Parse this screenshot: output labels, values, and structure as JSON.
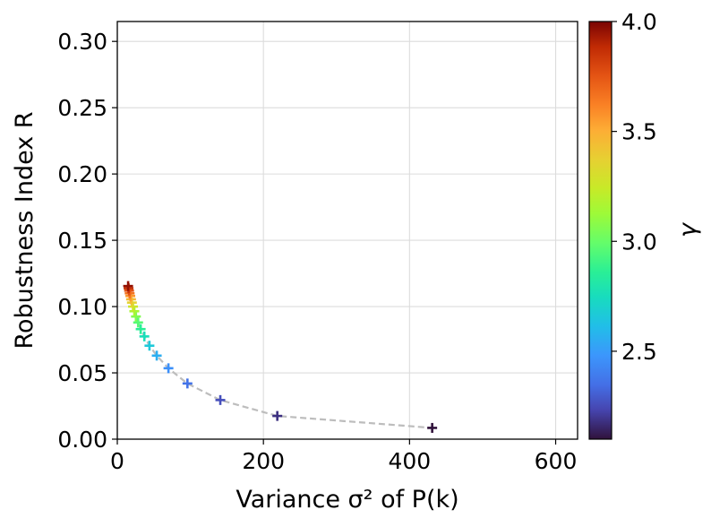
{
  "chart_data": {
    "type": "scatter",
    "title": "",
    "xlabel": "Variance σ² of P(k)",
    "ylabel": "Robustness Index R",
    "xlim": [
      0,
      630
    ],
    "ylim": [
      0,
      0.315
    ],
    "xticks": [
      0,
      200,
      400,
      600
    ],
    "xtick_labels": [
      "0",
      "200",
      "400",
      "600"
    ],
    "yticks": [
      0.0,
      0.05,
      0.1,
      0.15,
      0.2,
      0.25,
      0.3
    ],
    "ytick_labels": [
      "0.00",
      "0.05",
      "0.10",
      "0.15",
      "0.20",
      "0.25",
      "0.30"
    ],
    "grid": true,
    "marker": "+",
    "trend_line": {
      "style": "dashed",
      "color": "#bdbdbd"
    },
    "colorbar": {
      "label": "γ",
      "colormap": "turbo",
      "range": [
        2.1,
        4.0
      ],
      "ticks": [
        2.5,
        3.0,
        3.5,
        4.0
      ],
      "tick_labels": [
        "2.5",
        "3.0",
        "3.5",
        "4.0"
      ]
    },
    "points": [
      {
        "x": 431,
        "y": 0.0085,
        "gamma": 2.1
      },
      {
        "x": 219,
        "y": 0.0175,
        "gamma": 2.18
      },
      {
        "x": 141,
        "y": 0.0295,
        "gamma": 2.26
      },
      {
        "x": 96,
        "y": 0.042,
        "gamma": 2.36
      },
      {
        "x": 70,
        "y": 0.0535,
        "gamma": 2.46
      },
      {
        "x": 54,
        "y": 0.063,
        "gamma": 2.56
      },
      {
        "x": 44,
        "y": 0.0705,
        "gamma": 2.66
      },
      {
        "x": 37,
        "y": 0.0775,
        "gamma": 2.76
      },
      {
        "x": 32,
        "y": 0.083,
        "gamma": 2.86
      },
      {
        "x": 28.5,
        "y": 0.088,
        "gamma": 2.96
      },
      {
        "x": 25.5,
        "y": 0.0925,
        "gamma": 3.06
      },
      {
        "x": 23.3,
        "y": 0.0965,
        "gamma": 3.16
      },
      {
        "x": 21.5,
        "y": 0.1,
        "gamma": 3.26
      },
      {
        "x": 20,
        "y": 0.103,
        "gamma": 3.36
      },
      {
        "x": 18.8,
        "y": 0.1055,
        "gamma": 3.46
      },
      {
        "x": 17.8,
        "y": 0.108,
        "gamma": 3.56
      },
      {
        "x": 16.9,
        "y": 0.11,
        "gamma": 3.66
      },
      {
        "x": 16.1,
        "y": 0.112,
        "gamma": 3.76
      },
      {
        "x": 15.4,
        "y": 0.1138,
        "gamma": 3.86
      },
      {
        "x": 14.8,
        "y": 0.1155,
        "gamma": 3.96
      }
    ]
  }
}
